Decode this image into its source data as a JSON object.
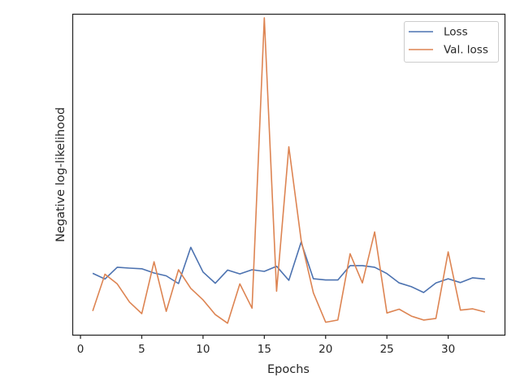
{
  "chart_data": {
    "type": "line",
    "xlabel": "Epochs",
    "ylabel": "Negative log-likelihood",
    "xlim": [
      -0.6,
      34.6
    ],
    "ylim": [
      0.0,
      1.0
    ],
    "y_ticks_labeled": false,
    "x_ticks": [
      0,
      5,
      10,
      15,
      20,
      25,
      30
    ],
    "legend": {
      "placement": "top-right"
    },
    "grid": false,
    "x": [
      1,
      2,
      3,
      4,
      5,
      6,
      7,
      8,
      9,
      10,
      11,
      12,
      13,
      14,
      15,
      16,
      17,
      18,
      19,
      20,
      21,
      22,
      23,
      24,
      25,
      26,
      27,
      28,
      29,
      30,
      31,
      32,
      33
    ],
    "series": [
      {
        "name": "Loss",
        "color": "#4c72b0",
        "values": [
          0.192,
          0.174,
          0.211,
          0.208,
          0.206,
          0.193,
          0.184,
          0.16,
          0.273,
          0.196,
          0.161,
          0.202,
          0.19,
          0.203,
          0.198,
          0.214,
          0.17,
          0.289,
          0.175,
          0.171,
          0.171,
          0.216,
          0.216,
          0.211,
          0.191,
          0.162,
          0.15,
          0.132,
          0.162,
          0.175,
          0.163,
          0.178,
          0.174
        ]
      },
      {
        "name": "Val. loss",
        "color": "#dd8452",
        "values": [
          0.074,
          0.189,
          0.159,
          0.102,
          0.066,
          0.228,
          0.073,
          0.203,
          0.145,
          0.109,
          0.063,
          0.036,
          0.159,
          0.083,
          0.99,
          0.136,
          0.587,
          0.296,
          0.131,
          0.039,
          0.046,
          0.253,
          0.162,
          0.321,
          0.068,
          0.08,
          0.058,
          0.046,
          0.051,
          0.259,
          0.077,
          0.081,
          0.071
        ]
      }
    ]
  }
}
